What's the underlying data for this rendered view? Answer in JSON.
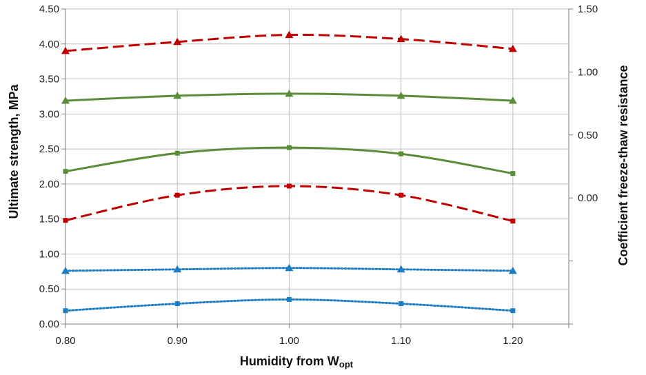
{
  "chart_data": {
    "type": "line",
    "xlabel": "Humidity from W",
    "xlabel_subscript": "opt",
    "ylabel_left": "Ultimate strength, MPa",
    "ylabel_right": "Coefficient freeze-thaw resistance",
    "x_ticks": [
      "0.80",
      "0.90",
      "1.00",
      "1.10",
      "1.20"
    ],
    "x_range": [
      0.8,
      1.25
    ],
    "y_left_ticks": [
      "0.00",
      "0.50",
      "1.00",
      "1.50",
      "2.00",
      "2.50",
      "3.00",
      "3.50",
      "4.00",
      "4.50"
    ],
    "y_left_range": [
      0,
      4.5
    ],
    "y_right_ticks": [
      "0.00",
      "0.50",
      "1.00",
      "1.50"
    ],
    "y_right_range": [
      -1.0,
      1.5
    ],
    "grid": true,
    "x": [
      0.8,
      0.9,
      1.0,
      1.1,
      1.2
    ],
    "series": [
      {
        "name": "red-dashed-upper",
        "axis": "left",
        "color": "#c00000",
        "dash": "dashed",
        "marker": "triangle",
        "values": [
          3.9,
          4.03,
          4.13,
          4.07,
          3.93
        ]
      },
      {
        "name": "green-solid-upper",
        "axis": "left",
        "color": "#5b8c3a",
        "dash": "solid",
        "marker": "triangle",
        "values": [
          3.19,
          3.26,
          3.29,
          3.26,
          3.19
        ]
      },
      {
        "name": "green-solid-lower",
        "axis": "left",
        "color": "#5b8c3a",
        "dash": "solid",
        "marker": "square",
        "values": [
          2.18,
          2.44,
          2.52,
          2.43,
          2.15
        ]
      },
      {
        "name": "red-dashed-lower",
        "axis": "left",
        "color": "#c00000",
        "dash": "dashed",
        "marker": "square",
        "values": [
          1.48,
          1.84,
          1.97,
          1.84,
          1.47
        ]
      },
      {
        "name": "blue-dotted-upper",
        "axis": "left",
        "color": "#1f7ec2",
        "dash": "dotted",
        "marker": "triangle",
        "values": [
          0.76,
          0.78,
          0.8,
          0.78,
          0.76
        ]
      },
      {
        "name": "blue-dotted-lower",
        "axis": "left",
        "color": "#1f7ec2",
        "dash": "dotted",
        "marker": "square",
        "values": [
          0.19,
          0.29,
          0.35,
          0.29,
          0.19
        ]
      }
    ]
  }
}
